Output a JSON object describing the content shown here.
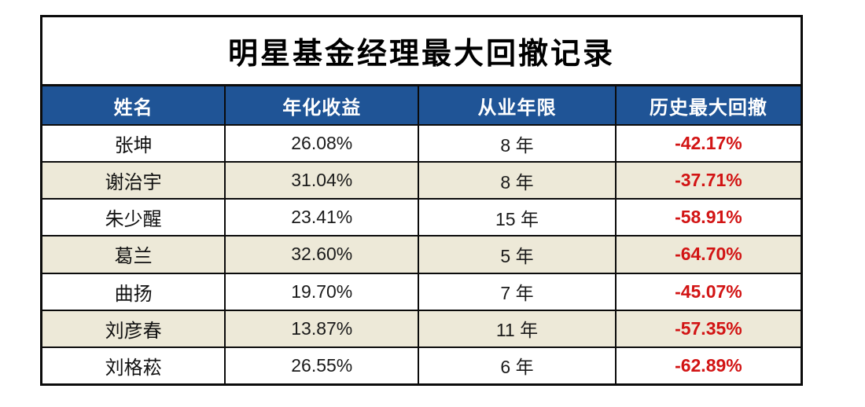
{
  "chart_data": {
    "type": "table",
    "title": "明星基金经理最大回撤记录",
    "columns": [
      "姓名",
      "年化收益",
      "从业年限",
      "历史最大回撤"
    ],
    "rows": [
      {
        "name": "张坤",
        "annual_return": "26.08%",
        "years": "8 年",
        "max_drawdown": "-42.17%"
      },
      {
        "name": "谢治宇",
        "annual_return": "31.04%",
        "years": "8 年",
        "max_drawdown": "-37.71%"
      },
      {
        "name": "朱少醒",
        "annual_return": "23.41%",
        "years": "15 年",
        "max_drawdown": "-58.91%"
      },
      {
        "name": "葛兰",
        "annual_return": "32.60%",
        "years": "5 年",
        "max_drawdown": "-64.70%"
      },
      {
        "name": "曲扬",
        "annual_return": "19.70%",
        "years": "7 年",
        "max_drawdown": "-45.07%"
      },
      {
        "name": "刘彦春",
        "annual_return": "13.87%",
        "years": "11 年",
        "max_drawdown": "-57.35%"
      },
      {
        "name": "刘格菘",
        "annual_return": "26.55%",
        "years": "6 年",
        "max_drawdown": "-62.89%"
      }
    ],
    "layout": {
      "grid": "black cell borders, outer border heavier",
      "row_banding": "white / beige alternating starting with white",
      "legend": "none"
    }
  },
  "style": {
    "header_bg": "#1F5496",
    "header_text": "#FFFFFF",
    "row_bg": "#FFFFFF",
    "alt_row_bg": "#EDE9D8",
    "drawdown_red": "#D21414",
    "border_black": "#0B0B0B",
    "title_color": "#000000"
  }
}
